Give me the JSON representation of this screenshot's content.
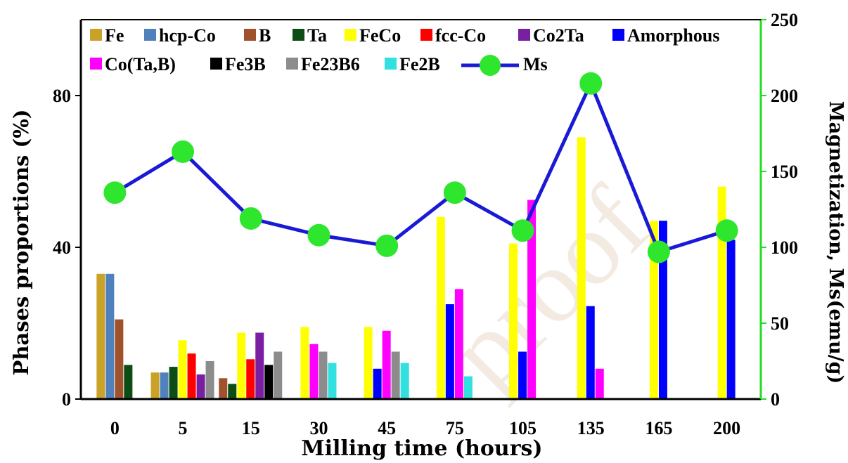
{
  "chart_data": {
    "type": "bar",
    "categories": [
      "0",
      "5",
      "15",
      "30",
      "45",
      "75",
      "105",
      "135",
      "165",
      "200"
    ],
    "xlabel": "Milling time (hours)",
    "ylabel": "Phases proportions (%)",
    "y2label": "Magnetization, Ms(emu/g)",
    "ylim": [
      0,
      100
    ],
    "y2lim": [
      0,
      250
    ],
    "yticks": [
      0,
      40,
      80
    ],
    "y2ticks": [
      0,
      50,
      100,
      150,
      200,
      250
    ],
    "watermark": "proof",
    "legend_placement": "top-left",
    "series": [
      {
        "name": "Fe",
        "color": "#c9a227",
        "values": [
          33,
          7,
          null,
          null,
          null,
          null,
          null,
          null,
          null,
          null
        ]
      },
      {
        "name": "hcp-Co",
        "color": "#4f81bd",
        "values": [
          33,
          7,
          null,
          null,
          null,
          null,
          null,
          null,
          null,
          null
        ]
      },
      {
        "name": "B",
        "color": "#a0522d",
        "values": [
          21,
          null,
          5.5,
          null,
          null,
          null,
          null,
          null,
          null,
          null
        ]
      },
      {
        "name": "Ta",
        "color": "#0b4d14",
        "values": [
          9,
          8.5,
          4,
          null,
          null,
          null,
          null,
          null,
          null,
          null
        ]
      },
      {
        "name": "FeCo",
        "color": "#ffff00",
        "values": [
          null,
          15.5,
          17.5,
          19,
          19,
          48,
          41,
          69,
          47,
          56
        ]
      },
      {
        "name": "fcc-Co",
        "color": "#ff0000",
        "values": [
          null,
          12,
          10.5,
          null,
          null,
          null,
          null,
          null,
          null,
          null
        ]
      },
      {
        "name": "Co2Ta",
        "color": "#7b1fa2",
        "values": [
          null,
          6.5,
          17.5,
          null,
          null,
          null,
          null,
          null,
          null,
          null
        ]
      },
      {
        "name": "Amorphous",
        "color": "#0000ff",
        "values": [
          null,
          null,
          null,
          null,
          8,
          25,
          12.5,
          24.5,
          47,
          42
        ]
      },
      {
        "name": "Co(Ta,B)",
        "color": "#ff00ff",
        "values": [
          null,
          null,
          null,
          14.5,
          18,
          29,
          52.5,
          8,
          null,
          null
        ]
      },
      {
        "name": "Fe3B",
        "color": "#000000",
        "values": [
          null,
          null,
          9,
          null,
          null,
          null,
          null,
          null,
          null,
          null
        ]
      },
      {
        "name": "Fe23B6",
        "color": "#8c8c8c",
        "values": [
          null,
          10,
          12.5,
          12.5,
          12.5,
          null,
          null,
          null,
          null,
          null
        ]
      },
      {
        "name": "Fe2B",
        "color": "#33e0e0",
        "values": [
          null,
          null,
          null,
          9.5,
          9.5,
          6,
          null,
          null,
          null,
          null
        ]
      },
      {
        "name": "Ms",
        "type": "line",
        "axis": "right",
        "line_color": "#1a1ad6",
        "marker_color": "#2ee62e",
        "values": [
          136,
          163,
          119,
          108,
          101,
          136,
          111,
          208,
          97,
          111
        ]
      }
    ]
  }
}
